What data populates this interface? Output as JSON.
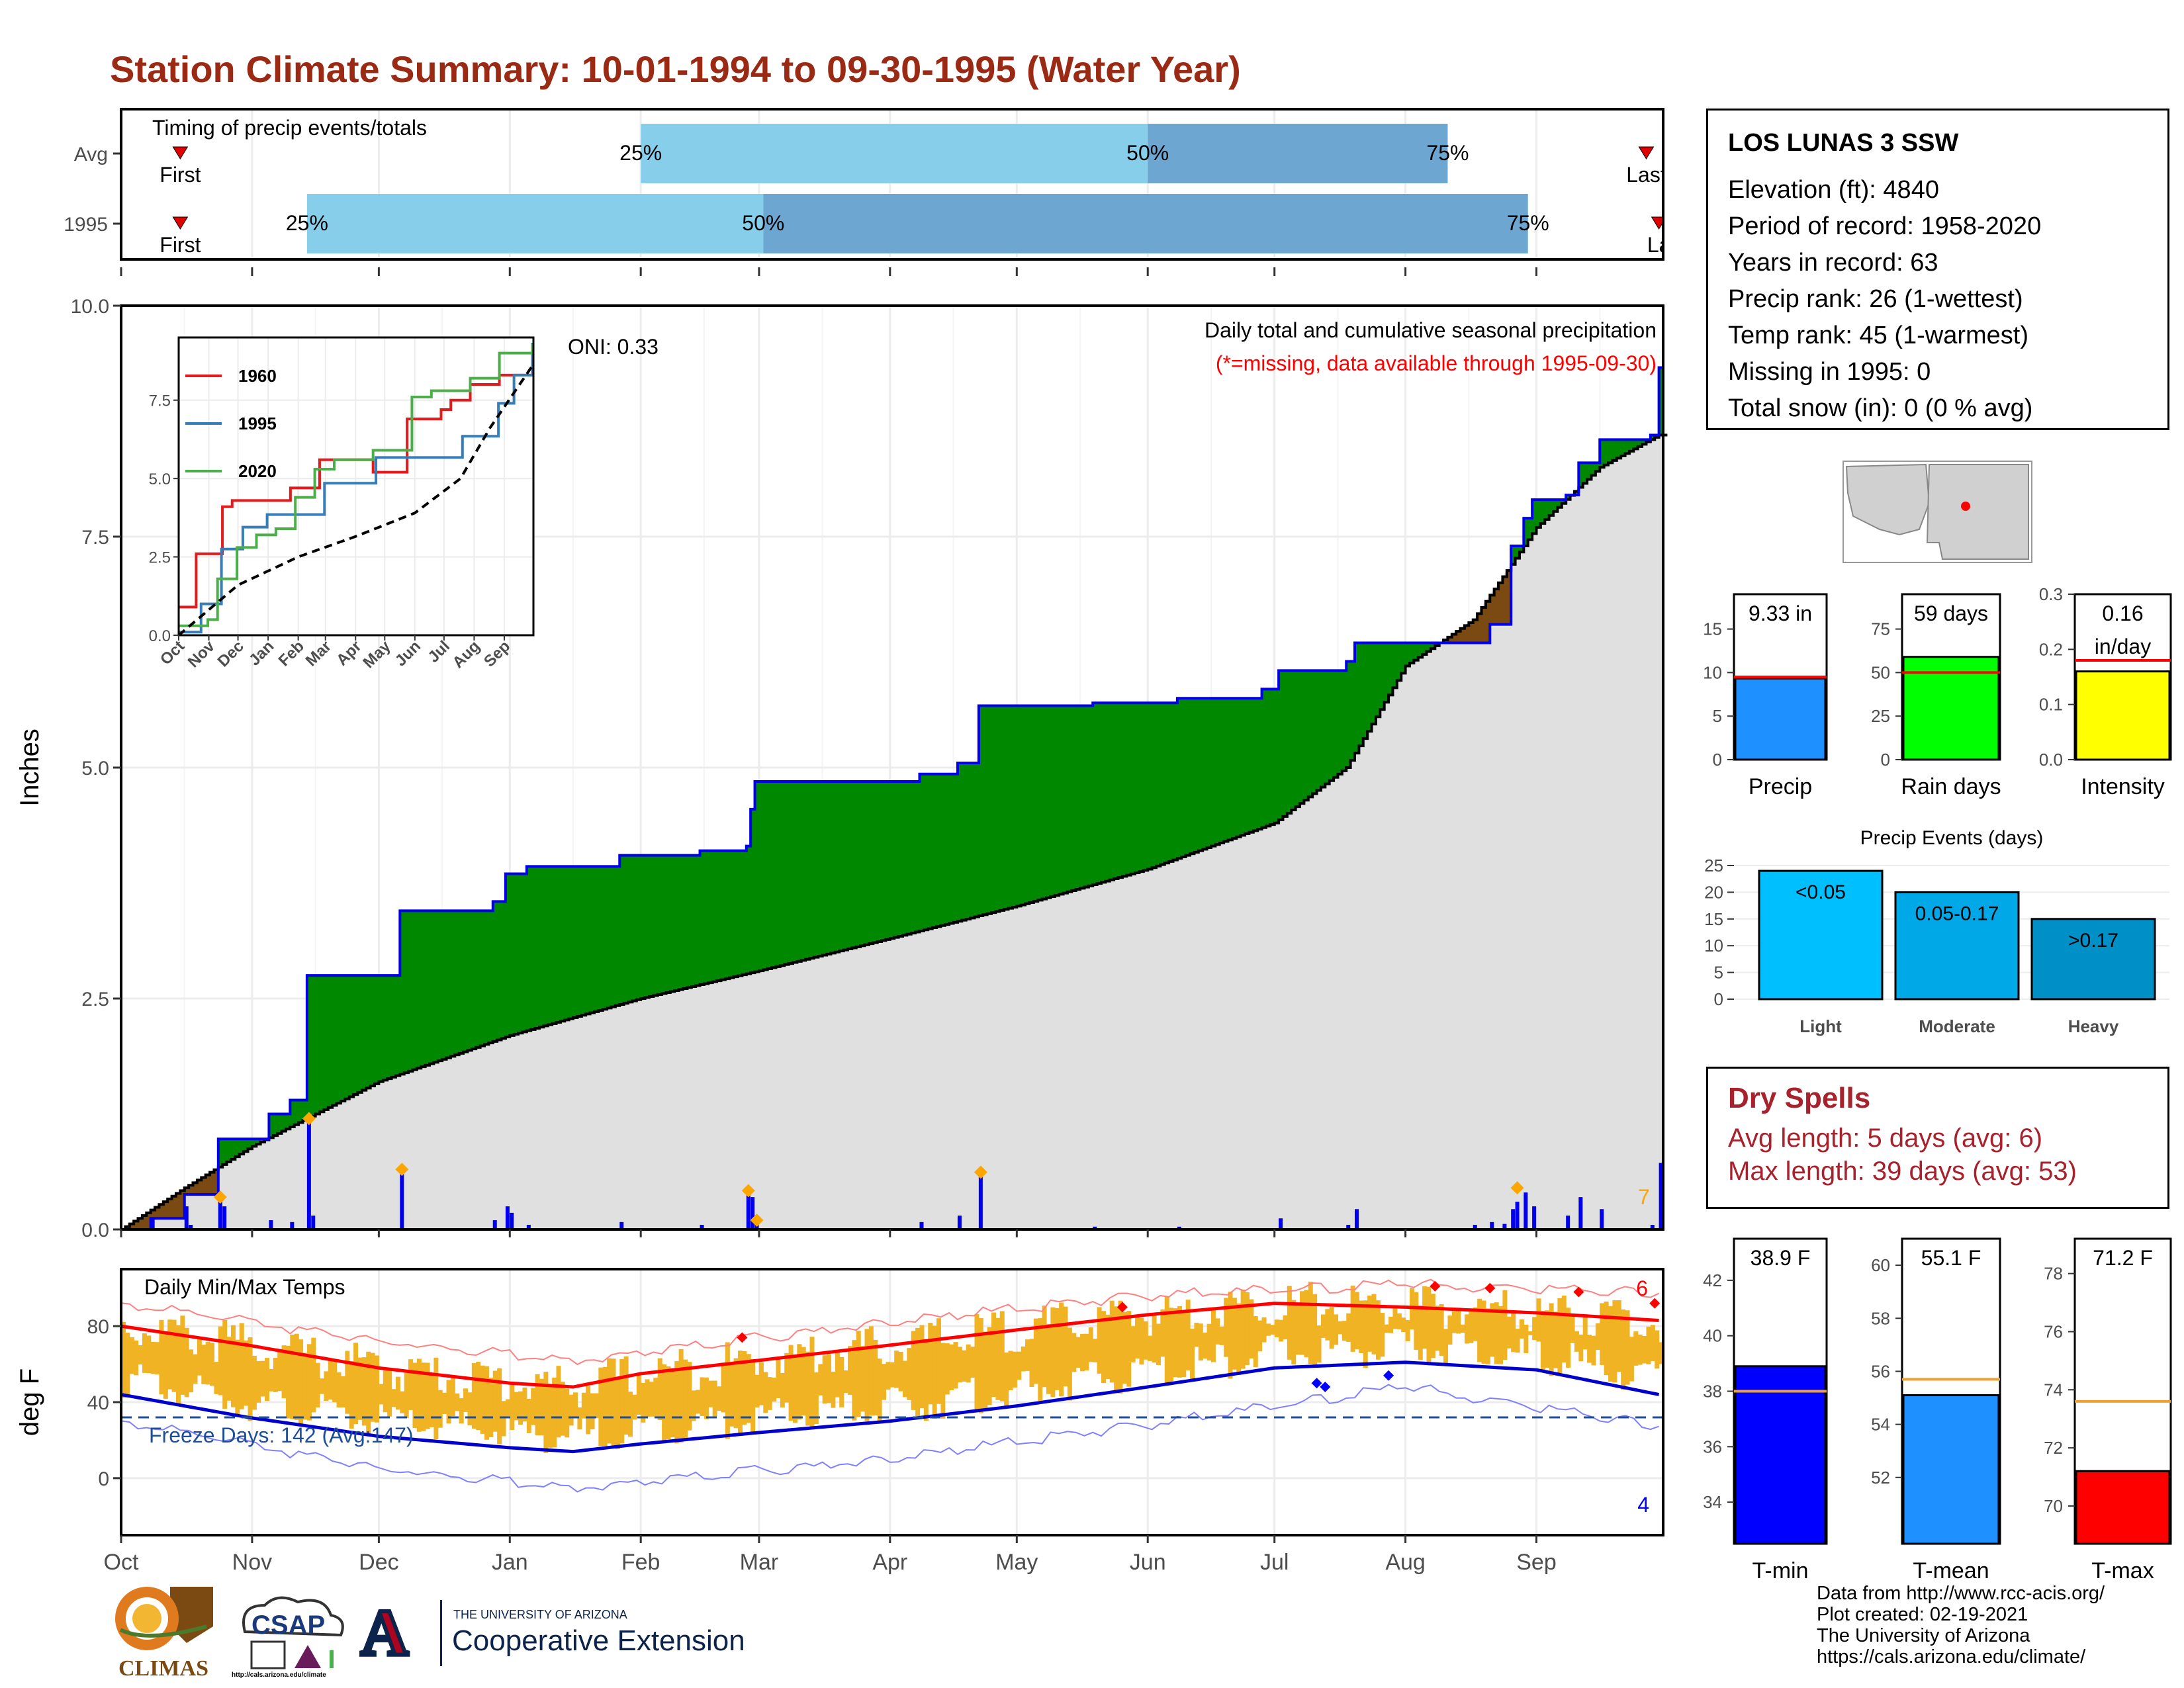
{
  "title": "Station Climate Summary: 10-01-1994 to 09-30-1995 (Water Year)",
  "station": {
    "name": "LOS LUNAS 3 SSW",
    "lines": [
      "Elevation (ft): 4840",
      "Period of record: 1958-2020",
      "Years in record: 63",
      "Precip rank: 26 (1-wettest)",
      "Temp rank: 45 (1-warmest)",
      "Missing in 1995: 0",
      "Total snow (in): 0 (0 % avg)"
    ]
  },
  "dry_spells": {
    "title": "Dry Spells",
    "avg_length": "Avg length: 5 days (avg: 6)",
    "max_length": "Max length: 39 days (avg: 53)"
  },
  "credits": [
    "Data from http://www.rcc-acis.org/",
    "Plot created: 02-19-2021",
    "The University of Arizona",
    "https://cals.arizona.edu/climate/"
  ],
  "logos": {
    "climas": "CLIMAS",
    "csap": "CSAP",
    "csap_url": "http://cals.arizona.edu/climate",
    "ua_top": "THE UNIVERSITY OF ARIZONA",
    "ua_bottom": "Cooperative Extension",
    "ua_letter": "A"
  },
  "colors": {
    "title": "#9b2a14",
    "precip_green": "#008800",
    "precip_brown": "#7b4a12",
    "climo_gray": "#e0e0e0",
    "blue_line": "#0000ee",
    "temp_bar": "#f0b323",
    "tmax_line": "#ff0000",
    "tmin_line": "#0000cc",
    "dry_spells": "#a7222c"
  },
  "chart_data": [
    {
      "id": "timing",
      "type": "bar",
      "title": "Timing of precip events/totals",
      "rows": [
        {
          "label": "Avg",
          "first_date": "10-15",
          "p25": "Feb 1",
          "p50": "Jun 1",
          "p75": "Aug 11",
          "last_date": "Sep 27",
          "first_label": "First",
          "last_label": "Last"
        },
        {
          "label": "1995",
          "first_date": "10-15",
          "p25": "Nov 14",
          "p50": "Mar 2",
          "p75": "Aug 30",
          "last_date": "Sep 30",
          "first_label": "First",
          "last_label": "La"
        }
      ],
      "pct_labels": [
        "25%",
        "50%",
        "75%"
      ]
    },
    {
      "id": "precip",
      "type": "area",
      "title": "Daily total and cumulative seasonal precipitation",
      "subtitle": "(*=missing, data available through 1995-09-30)",
      "annotation": "ONI: 0.33",
      "corner_count": "7",
      "ylabel": "Inches",
      "ylim": [
        0,
        10
      ],
      "yticks": [
        "0.0",
        "2.5",
        "5.0",
        "7.5",
        "10.0"
      ],
      "months": [
        "Oct",
        "Nov",
        "Dec",
        "Jan",
        "Feb",
        "Mar",
        "Apr",
        "May",
        "Jun",
        "Jul",
        "Aug",
        "Sep"
      ],
      "cumulative_1995": [
        {
          "day": 0,
          "v": 0.0
        },
        {
          "day": 7,
          "v": 0.12
        },
        {
          "day": 15,
          "v": 0.38
        },
        {
          "day": 23,
          "v": 0.98
        },
        {
          "day": 35,
          "v": 1.25
        },
        {
          "day": 40,
          "v": 1.4
        },
        {
          "day": 44,
          "v": 2.75
        },
        {
          "day": 62,
          "v": 2.75
        },
        {
          "day": 66,
          "v": 3.45
        },
        {
          "day": 86,
          "v": 3.45
        },
        {
          "day": 88,
          "v": 3.55
        },
        {
          "day": 91,
          "v": 3.85
        },
        {
          "day": 96,
          "v": 3.93
        },
        {
          "day": 118,
          "v": 4.05
        },
        {
          "day": 137,
          "v": 4.1
        },
        {
          "day": 148,
          "v": 4.15
        },
        {
          "day": 149,
          "v": 4.55
        },
        {
          "day": 150,
          "v": 4.85
        },
        {
          "day": 189,
          "v": 4.93
        },
        {
          "day": 198,
          "v": 5.05
        },
        {
          "day": 203,
          "v": 5.67
        },
        {
          "day": 230,
          "v": 5.7
        },
        {
          "day": 250,
          "v": 5.75
        },
        {
          "day": 270,
          "v": 5.85
        },
        {
          "day": 274,
          "v": 6.05
        },
        {
          "day": 290,
          "v": 6.15
        },
        {
          "day": 292,
          "v": 6.35
        },
        {
          "day": 320,
          "v": 6.35
        },
        {
          "day": 324,
          "v": 6.55
        },
        {
          "day": 329,
          "v": 7.4
        },
        {
          "day": 332,
          "v": 7.7
        },
        {
          "day": 334,
          "v": 7.9
        },
        {
          "day": 342,
          "v": 7.95
        },
        {
          "day": 345,
          "v": 8.3
        },
        {
          "day": 350,
          "v": 8.55
        },
        {
          "day": 362,
          "v": 8.6
        },
        {
          "day": 364,
          "v": 9.33
        }
      ],
      "average_cumulative": [
        {
          "day": 0,
          "v": 0.0
        },
        {
          "day": 15,
          "v": 0.45
        },
        {
          "day": 31,
          "v": 0.9
        },
        {
          "day": 61,
          "v": 1.6
        },
        {
          "day": 92,
          "v": 2.1
        },
        {
          "day": 123,
          "v": 2.5
        },
        {
          "day": 151,
          "v": 2.8
        },
        {
          "day": 182,
          "v": 3.15
        },
        {
          "day": 212,
          "v": 3.5
        },
        {
          "day": 243,
          "v": 3.9
        },
        {
          "day": 273,
          "v": 4.4
        },
        {
          "day": 290,
          "v": 5.0
        },
        {
          "day": 304,
          "v": 6.1
        },
        {
          "day": 320,
          "v": 6.6
        },
        {
          "day": 335,
          "v": 7.6
        },
        {
          "day": 350,
          "v": 8.25
        },
        {
          "day": 364,
          "v": 8.6
        }
      ],
      "daily_precip": [
        {
          "day": 7,
          "v": 0.12
        },
        {
          "day": 15,
          "v": 0.25
        },
        {
          "day": 16,
          "v": 0.05
        },
        {
          "day": 23,
          "v": 0.35
        },
        {
          "day": 24,
          "v": 0.25
        },
        {
          "day": 35,
          "v": 0.1
        },
        {
          "day": 40,
          "v": 0.08
        },
        {
          "day": 44,
          "v": 1.2
        },
        {
          "day": 45,
          "v": 0.15
        },
        {
          "day": 66,
          "v": 0.65
        },
        {
          "day": 88,
          "v": 0.1
        },
        {
          "day": 91,
          "v": 0.25
        },
        {
          "day": 92,
          "v": 0.18
        },
        {
          "day": 96,
          "v": 0.05
        },
        {
          "day": 118,
          "v": 0.08
        },
        {
          "day": 137,
          "v": 0.05
        },
        {
          "day": 148,
          "v": 0.4
        },
        {
          "day": 149,
          "v": 0.35
        },
        {
          "day": 150,
          "v": 0.12
        },
        {
          "day": 189,
          "v": 0.08
        },
        {
          "day": 198,
          "v": 0.15
        },
        {
          "day": 203,
          "v": 0.62
        },
        {
          "day": 230,
          "v": 0.03
        },
        {
          "day": 250,
          "v": 0.03
        },
        {
          "day": 274,
          "v": 0.12
        },
        {
          "day": 290,
          "v": 0.05
        },
        {
          "day": 292,
          "v": 0.22
        },
        {
          "day": 320,
          "v": 0.05
        },
        {
          "day": 324,
          "v": 0.08
        },
        {
          "day": 327,
          "v": 0.06
        },
        {
          "day": 329,
          "v": 0.22
        },
        {
          "day": 330,
          "v": 0.3
        },
        {
          "day": 332,
          "v": 0.4
        },
        {
          "day": 334,
          "v": 0.25
        },
        {
          "day": 342,
          "v": 0.15
        },
        {
          "day": 345,
          "v": 0.35
        },
        {
          "day": 350,
          "v": 0.22
        },
        {
          "day": 362,
          "v": 0.05
        },
        {
          "day": 364,
          "v": 0.72
        }
      ],
      "record_markers": [
        {
          "day": 23,
          "v": 0.35
        },
        {
          "day": 44,
          "v": 1.2
        },
        {
          "day": 66,
          "v": 0.65
        },
        {
          "day": 148,
          "v": 0.42
        },
        {
          "day": 150,
          "v": 0.1
        },
        {
          "day": 203,
          "v": 0.62
        },
        {
          "day": 330,
          "v": 0.45
        }
      ]
    },
    {
      "id": "inset",
      "type": "line",
      "ylim": [
        0,
        9.5
      ],
      "yticks": [
        "0.0",
        "2.5",
        "5.0",
        "7.5"
      ],
      "months": [
        "Oct",
        "Nov",
        "Dec",
        "Jan",
        "Feb",
        "Mar",
        "Apr",
        "May",
        "Jun",
        "Jul",
        "Aug",
        "Sep"
      ],
      "series": [
        {
          "name": "1960",
          "color": "#e41a1c",
          "values": [
            [
              0,
              0.9
            ],
            [
              15,
              0.9
            ],
            [
              18,
              2.6
            ],
            [
              40,
              2.6
            ],
            [
              45,
              4.1
            ],
            [
              55,
              4.3
            ],
            [
              110,
              4.3
            ],
            [
              115,
              4.7
            ],
            [
              140,
              4.7
            ],
            [
              145,
              5.6
            ],
            [
              190,
              5.6
            ],
            [
              200,
              5.2
            ],
            [
              230,
              5.2
            ],
            [
              235,
              6.9
            ],
            [
              270,
              7.2
            ],
            [
              280,
              7.5
            ],
            [
              300,
              8.0
            ],
            [
              330,
              8.3
            ],
            [
              364,
              8.4
            ]
          ]
        },
        {
          "name": "1995",
          "color": "#377eb8",
          "values": [
            [
              0,
              0.1
            ],
            [
              23,
              1.0
            ],
            [
              44,
              2.75
            ],
            [
              66,
              3.45
            ],
            [
              91,
              3.85
            ],
            [
              150,
              4.85
            ],
            [
              203,
              5.67
            ],
            [
              292,
              6.35
            ],
            [
              329,
              7.4
            ],
            [
              345,
              8.3
            ],
            [
              364,
              9.33
            ]
          ]
        },
        {
          "name": "2020",
          "color": "#4daf4a",
          "values": [
            [
              0,
              0.3
            ],
            [
              30,
              0.5
            ],
            [
              40,
              1.8
            ],
            [
              60,
              2.8
            ],
            [
              80,
              3.2
            ],
            [
              100,
              3.4
            ],
            [
              120,
              4.4
            ],
            [
              140,
              5.3
            ],
            [
              160,
              5.6
            ],
            [
              200,
              5.9
            ],
            [
              240,
              7.6
            ],
            [
              260,
              7.8
            ],
            [
              300,
              8.2
            ],
            [
              330,
              9.0
            ],
            [
              364,
              9.3
            ]
          ]
        },
        {
          "name": "avg",
          "color": "#000000",
          "dashed": true,
          "values": [
            [
              0,
              0
            ],
            [
              61,
              1.6
            ],
            [
              123,
              2.5
            ],
            [
              182,
              3.15
            ],
            [
              243,
              3.9
            ],
            [
              290,
              5.0
            ],
            [
              320,
              6.6
            ],
            [
              364,
              8.6
            ]
          ]
        }
      ]
    },
    {
      "id": "temps",
      "type": "bar",
      "title": "Daily Min/Max Temps",
      "ylabel": "deg F",
      "ylim": [
        -30,
        110
      ],
      "yticks": [
        "0",
        "40",
        "80"
      ],
      "freeze_label": "Freeze Days: 142 (Avg:147)",
      "freeze_line": 32,
      "max_record_count": "6",
      "min_record_count": "4",
      "avg_tmax": [
        [
          0,
          80
        ],
        [
          30,
          70
        ],
        [
          61,
          58
        ],
        [
          92,
          50
        ],
        [
          107,
          48
        ],
        [
          123,
          55
        ],
        [
          151,
          62
        ],
        [
          182,
          70
        ],
        [
          212,
          78
        ],
        [
          243,
          86
        ],
        [
          273,
          92
        ],
        [
          304,
          90
        ],
        [
          335,
          87
        ],
        [
          364,
          83
        ]
      ],
      "avg_tmin": [
        [
          0,
          44
        ],
        [
          30,
          32
        ],
        [
          61,
          22
        ],
        [
          92,
          16
        ],
        [
          107,
          14
        ],
        [
          123,
          18
        ],
        [
          151,
          24
        ],
        [
          182,
          30
        ],
        [
          212,
          38
        ],
        [
          243,
          48
        ],
        [
          273,
          58
        ],
        [
          304,
          61
        ],
        [
          335,
          57
        ],
        [
          364,
          44
        ]
      ],
      "record_tmax": [
        [
          0,
          92
        ],
        [
          61,
          72
        ],
        [
          107,
          62
        ],
        [
          182,
          82
        ],
        [
          243,
          96
        ],
        [
          304,
          102
        ],
        [
          364,
          98
        ]
      ],
      "record_tmin": [
        [
          0,
          30
        ],
        [
          61,
          5
        ],
        [
          107,
          -5
        ],
        [
          182,
          10
        ],
        [
          243,
          28
        ],
        [
          304,
          48
        ],
        [
          364,
          28
        ]
      ],
      "max_markers": [
        [
          147,
          74
        ],
        [
          237,
          90
        ],
        [
          311,
          101
        ],
        [
          324,
          100
        ],
        [
          345,
          98
        ],
        [
          363,
          92
        ]
      ],
      "min_markers": [
        [
          283,
          50
        ],
        [
          285,
          48
        ],
        [
          300,
          54
        ]
      ]
    },
    {
      "id": "summary_precip",
      "type": "bar",
      "panels": [
        {
          "label": "Precip",
          "value_label": "9.33 in",
          "value": 9.33,
          "avg": 9.5,
          "ylim": [
            0,
            19
          ],
          "yticks": [
            "0",
            "5",
            "10",
            "15"
          ],
          "color": "#1e90ff"
        },
        {
          "label": "Rain days",
          "value_label": "59 days",
          "value": 59,
          "avg": 50,
          "ylim": [
            0,
            95
          ],
          "yticks": [
            "0",
            "25",
            "50",
            "75"
          ],
          "color": "#00ff00"
        },
        {
          "label": "Intensity",
          "value_label": "0.16",
          "value_label2": "in/day",
          "value": 0.16,
          "avg": 0.18,
          "ylim": [
            0,
            0.3
          ],
          "yticks": [
            "0.0",
            "0.1",
            "0.2",
            "0.3"
          ],
          "color": "#ffff00"
        }
      ]
    },
    {
      "id": "precip_events",
      "type": "bar",
      "title": "Precip Events (days)",
      "ylim": [
        0,
        25
      ],
      "yticks": [
        "0",
        "5",
        "10",
        "15",
        "20",
        "25"
      ],
      "categories": [
        "Light",
        "Moderate",
        "Heavy"
      ],
      "bar_labels": [
        "<0.05",
        "0.05-0.17",
        ">0.17"
      ],
      "values": [
        24,
        20,
        15
      ],
      "colors": [
        "#00bfff",
        "#00a8e8",
        "#0090c8"
      ]
    },
    {
      "id": "summary_temps",
      "type": "bar",
      "panels": [
        {
          "label": "T-min",
          "value_label": "38.9 F",
          "value": 38.9,
          "avg": 38,
          "ylim": [
            32.5,
            43.5
          ],
          "yticks": [
            "34",
            "36",
            "38",
            "40",
            "42"
          ],
          "color": "#0000ff"
        },
        {
          "label": "T-mean",
          "value_label": "55.1 F",
          "value": 55.1,
          "avg": 55.7,
          "ylim": [
            49.5,
            61
          ],
          "yticks": [
            "52",
            "54",
            "56",
            "58",
            "60"
          ],
          "color": "#1e90ff"
        },
        {
          "label": "T-max",
          "value_label": "71.2 F",
          "value": 71.2,
          "avg": 73.6,
          "ylim": [
            68.7,
            79.2
          ],
          "yticks": [
            "70",
            "72",
            "74",
            "76",
            "78"
          ],
          "color": "#ff0000"
        }
      ]
    }
  ]
}
